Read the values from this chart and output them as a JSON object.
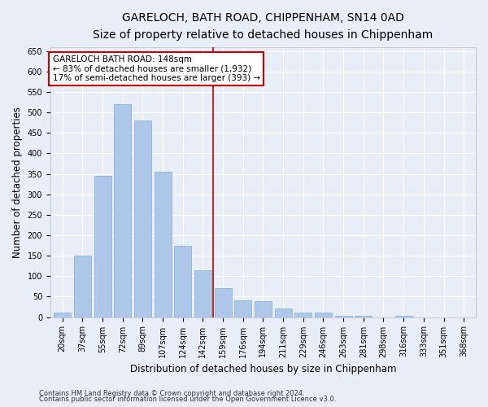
{
  "title_line1": "GARELOCH, BATH ROAD, CHIPPENHAM, SN14 0AD",
  "title_line2": "Size of property relative to detached houses in Chippenham",
  "xlabel": "Distribution of detached houses by size in Chippenham",
  "ylabel": "Number of detached properties",
  "categories": [
    "20sqm",
    "37sqm",
    "55sqm",
    "72sqm",
    "89sqm",
    "107sqm",
    "124sqm",
    "142sqm",
    "159sqm",
    "176sqm",
    "194sqm",
    "211sqm",
    "229sqm",
    "246sqm",
    "263sqm",
    "281sqm",
    "298sqm",
    "316sqm",
    "333sqm",
    "351sqm",
    "368sqm"
  ],
  "values": [
    12,
    150,
    345,
    520,
    480,
    355,
    175,
    115,
    70,
    40,
    38,
    22,
    12,
    12,
    4,
    4,
    0,
    4,
    0,
    0,
    0
  ],
  "bar_color": "#aec6e8",
  "bar_edge_color": "#7bafd4",
  "vline_color": "#cc0000",
  "annotation_text": "GARELOCH BATH ROAD: 148sqm\n← 83% of detached houses are smaller (1,932)\n17% of semi-detached houses are larger (393) →",
  "annotation_box_color": "#ffffff",
  "annotation_box_edge": "#cc0000",
  "ylim": [
    0,
    660
  ],
  "yticks": [
    0,
    50,
    100,
    150,
    200,
    250,
    300,
    350,
    400,
    450,
    500,
    550,
    600,
    650
  ],
  "footer_line1": "Contains HM Land Registry data © Crown copyright and database right 2024.",
  "footer_line2": "Contains public sector information licensed under the Open Government Licence v3.0.",
  "background_color": "#e8eef8",
  "grid_color": "#ffffff",
  "title_fontsize": 10,
  "subtitle_fontsize": 9,
  "tick_fontsize": 7,
  "label_fontsize": 8.5,
  "footer_fontsize": 6,
  "annot_fontsize": 7.5,
  "vline_x_index": 7
}
